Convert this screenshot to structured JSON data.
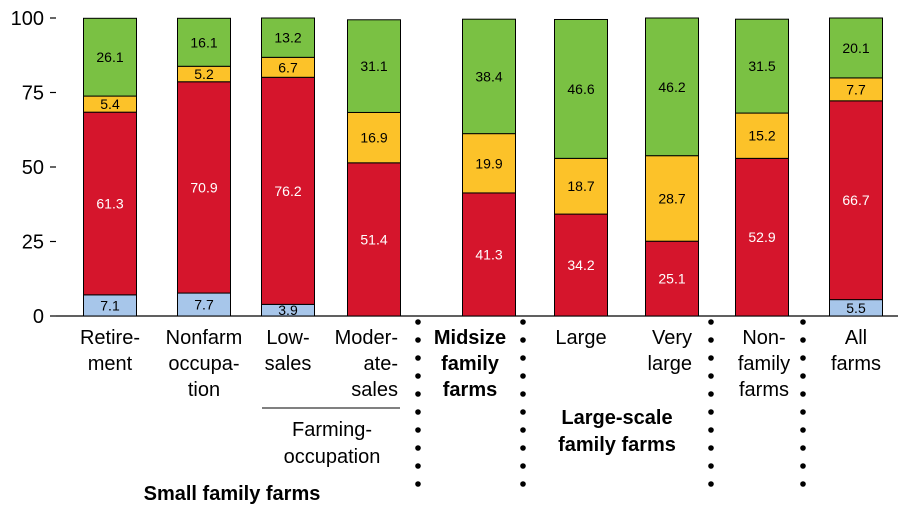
{
  "chart_data": {
    "type": "bar",
    "stacked": true,
    "title": "",
    "ylim": [
      0,
      100
    ],
    "yticks": [
      "0",
      "25",
      "50",
      "75",
      "100"
    ],
    "categories": [
      [
        "Retire-",
        "ment"
      ],
      [
        "Nonfarm",
        "occupa-",
        "tion"
      ],
      [
        "Low-",
        "sales"
      ],
      [
        "Moder-",
        "ate-",
        "sales"
      ],
      [
        "Midsize",
        "family",
        "farms"
      ],
      [
        "Large"
      ],
      [
        "Very",
        "large"
      ],
      [
        "Non-",
        "family",
        "farms"
      ],
      [
        "All",
        "farms"
      ]
    ],
    "series": [
      {
        "color": "#a7c6ea",
        "values": [
          7.1,
          7.7,
          3.9,
          0,
          0,
          0,
          0,
          0,
          5.5
        ],
        "labels": [
          "7.1",
          "7.7",
          "3.9",
          "",
          "",
          "",
          "",
          "",
          "5.5"
        ],
        "label_color": "#000000"
      },
      {
        "color": "#d5152c",
        "values": [
          61.3,
          70.9,
          76.2,
          51.4,
          41.3,
          34.2,
          25.1,
          52.9,
          66.7
        ],
        "labels": [
          "61.3",
          "70.9",
          "76.2",
          "51.4",
          "41.3",
          "34.2",
          "25.1",
          "52.9",
          "66.7"
        ],
        "label_color": "#ffffff"
      },
      {
        "color": "#fcc229",
        "values": [
          5.4,
          5.2,
          6.7,
          16.9,
          19.9,
          18.7,
          28.7,
          15.2,
          7.7
        ],
        "labels": [
          "5.4",
          "5.2",
          "6.7",
          "16.9",
          "19.9",
          "18.7",
          "28.7",
          "15.2",
          "7.7"
        ],
        "label_color": "#000000"
      },
      {
        "color": "#7ac143",
        "values": [
          26.1,
          16.1,
          13.2,
          31.1,
          38.4,
          46.6,
          46.2,
          31.5,
          20.1
        ],
        "labels": [
          "26.1",
          "16.1",
          "13.2",
          "31.1",
          "38.4",
          "46.6",
          "46.2",
          "31.5",
          "20.1"
        ],
        "label_color": "#000000"
      }
    ],
    "group_labels": {
      "farming_occupation": [
        "Farming-",
        "occupation"
      ],
      "large_scale": [
        "Large-scale",
        "family farms"
      ],
      "small_family": "Small family farms"
    }
  }
}
